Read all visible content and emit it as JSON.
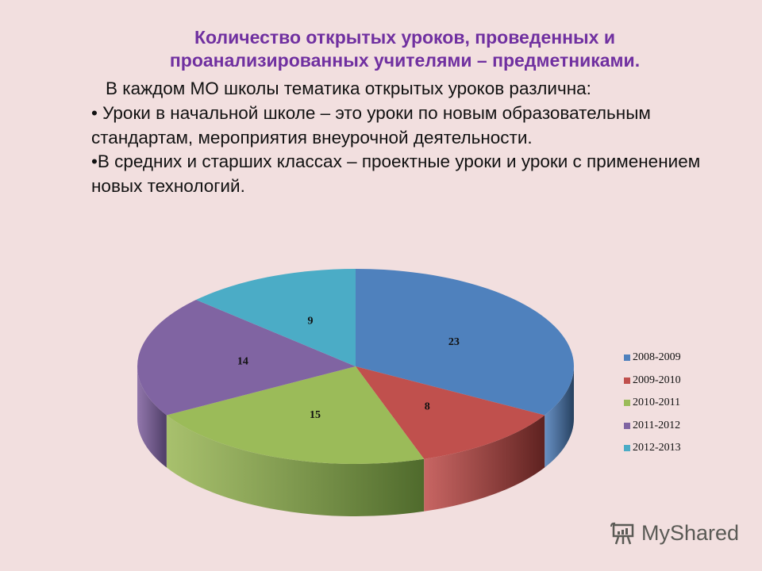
{
  "slide": {
    "title": "Количество открытых уроков, проведенных и проанализированных учителями – предметниками.",
    "intro": "В каждом МО школы тематика открытых уроков различна:",
    "bullets": [
      "• Уроки в начальной школе – это уроки по новым образовательным стандартам, мероприятия внеурочной деятельности.",
      "•В средних и старших классах – проектные уроки и  уроки с применением новых технологий."
    ]
  },
  "watermark": {
    "text": "MyShared",
    "icon": "presentation-board-icon"
  },
  "colors": {
    "title": "#7030a0",
    "background": "#f2dfdf"
  },
  "chart_data": {
    "type": "pie",
    "style": "3d",
    "title": "",
    "categories": [
      "2008-2009",
      "2009-2010",
      "2010-2011",
      "2011-2012",
      "2012-2013"
    ],
    "values": [
      23,
      8,
      15,
      14,
      9
    ],
    "colors": [
      "#4f81bd",
      "#c0504d",
      "#9bbb59",
      "#8064a2",
      "#4bacc6"
    ],
    "side_colors": [
      "#26405e",
      "#5e2220",
      "#4f6a2c",
      "#4e3d66",
      "#2a6a7a"
    ],
    "data_labels": [
      "23",
      "8",
      "15",
      "14",
      "9"
    ],
    "start_angle": "12 o'clock",
    "direction": "clockwise",
    "legend": {
      "position": "right",
      "entries": [
        "2008-2009",
        "2009-2010",
        "2010-2011",
        "2011-2012",
        "2012-2013"
      ]
    }
  }
}
